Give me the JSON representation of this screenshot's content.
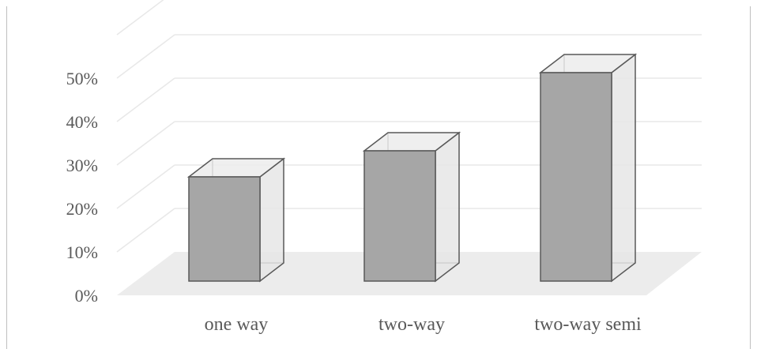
{
  "chart_data": {
    "type": "bar",
    "title": "",
    "categories": [
      "one way",
      "two-way",
      "two-way semi"
    ],
    "values": [
      0.24,
      0.3,
      0.48
    ],
    "ylim": [
      0,
      0.5
    ],
    "yticks": [
      "0%",
      "10%",
      "20%",
      "30%",
      "40%",
      "50%"
    ],
    "xlabel": "",
    "ylabel": "",
    "grid": true,
    "style": "3d-column",
    "colors": {
      "front": "#a6a6a6",
      "side": "#e6e6e6",
      "top": "#ececec",
      "edge": "#595959",
      "floor": "#ececec",
      "gridline": "#e8e8e8",
      "label": "#595959"
    }
  }
}
